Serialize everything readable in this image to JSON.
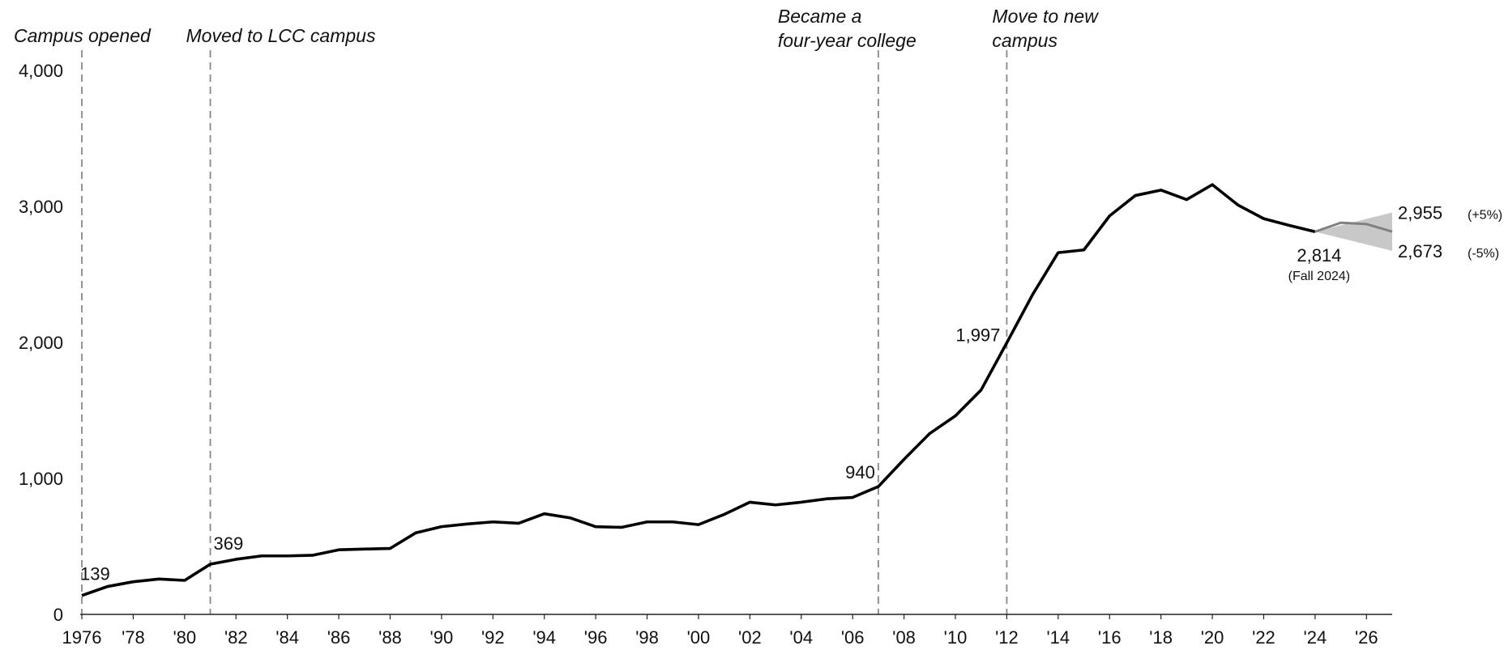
{
  "chart_data": {
    "type": "line",
    "colors": {
      "history": "#000000",
      "projection": "#808080",
      "band": "#c8c8c8",
      "event_line": "#888888"
    },
    "x_ticks": [
      {
        "x": 1976,
        "label": "1976"
      },
      {
        "x": 1978,
        "label": "'78"
      },
      {
        "x": 1980,
        "label": "'80"
      },
      {
        "x": 1982,
        "label": "'82"
      },
      {
        "x": 1984,
        "label": "'84"
      },
      {
        "x": 1986,
        "label": "'86"
      },
      {
        "x": 1988,
        "label": "'88"
      },
      {
        "x": 1990,
        "label": "'90"
      },
      {
        "x": 1992,
        "label": "'92"
      },
      {
        "x": 1994,
        "label": "'94"
      },
      {
        "x": 1996,
        "label": "'96"
      },
      {
        "x": 1998,
        "label": "'98"
      },
      {
        "x": 2000,
        "label": "'00"
      },
      {
        "x": 2002,
        "label": "'02"
      },
      {
        "x": 2004,
        "label": "'04"
      },
      {
        "x": 2006,
        "label": "'06"
      },
      {
        "x": 2008,
        "label": "'08"
      },
      {
        "x": 2010,
        "label": "'10"
      },
      {
        "x": 2012,
        "label": "'12"
      },
      {
        "x": 2014,
        "label": "'14"
      },
      {
        "x": 2016,
        "label": "'16"
      },
      {
        "x": 2018,
        "label": "'18"
      },
      {
        "x": 2020,
        "label": "'20"
      },
      {
        "x": 2022,
        "label": "'22"
      },
      {
        "x": 2024,
        "label": "'24"
      },
      {
        "x": 2026,
        "label": "'26"
      }
    ],
    "y_ticks": [
      {
        "y": 0,
        "label": "0"
      },
      {
        "y": 1000,
        "label": "1,000"
      },
      {
        "y": 2000,
        "label": "2,000"
      },
      {
        "y": 3000,
        "label": "3,000"
      },
      {
        "y": 4000,
        "label": "4,000"
      }
    ],
    "xlim": [
      1976,
      2027
    ],
    "ylim": [
      0,
      4000
    ],
    "grid": false,
    "series": [
      {
        "x": [
          1976,
          1977,
          1978,
          1979,
          1980,
          1981,
          1982,
          1983,
          1984,
          1985,
          1986,
          1987,
          1988,
          1989,
          1990,
          1991,
          1992,
          1993,
          1994,
          1995,
          1996,
          1997,
          1998,
          1999,
          2000,
          2001,
          2002,
          2003,
          2004,
          2005,
          2006,
          2007,
          2008,
          2009,
          2010,
          2011,
          2012,
          2013,
          2014,
          2015,
          2016,
          2017,
          2018,
          2019,
          2020,
          2021,
          2022,
          2023,
          2024
        ],
        "y": [
          139,
          205,
          240,
          260,
          250,
          369,
          405,
          430,
          430,
          435,
          475,
          480,
          485,
          600,
          645,
          665,
          680,
          670,
          740,
          710,
          645,
          640,
          680,
          680,
          660,
          735,
          825,
          805,
          825,
          850,
          860,
          940,
          1140,
          1330,
          1460,
          1650,
          1997,
          2350,
          2660,
          2680,
          2930,
          3080,
          3120,
          3050,
          3160,
          3010,
          2910,
          2860,
          2814
        ]
      },
      {
        "x": [
          2024,
          2025,
          2026,
          2027
        ],
        "y": [
          2814,
          2880,
          2870,
          2814
        ]
      }
    ],
    "projection_band": {
      "x": [
        2024,
        2027
      ],
      "upper": [
        2814,
        2955
      ],
      "lower": [
        2814,
        2673
      ]
    },
    "events": [
      {
        "x": 1976,
        "label_lines": [
          "Campus opened"
        ]
      },
      {
        "x": 1981,
        "label_lines": [
          "Moved to LCC campus"
        ]
      },
      {
        "x": 2007,
        "label_lines": [
          "Became a",
          "four-year college"
        ]
      },
      {
        "x": 2012,
        "label_lines": [
          "Move to new",
          "campus"
        ]
      }
    ],
    "annotations": [
      {
        "x": 1976,
        "y": 139,
        "text": "139"
      },
      {
        "x": 1981,
        "y": 369,
        "text": "369"
      },
      {
        "x": 2007,
        "y": 940,
        "text": "940"
      },
      {
        "x": 2012,
        "y": 1997,
        "text": "1,997"
      },
      {
        "x": 2024,
        "y": 2814,
        "text": "2,814",
        "sub": "(Fall 2024)"
      },
      {
        "x": 2027,
        "y": 2955,
        "text": "2,955",
        "sub": "(+5%)"
      },
      {
        "x": 2027,
        "y": 2673,
        "text": "2,673",
        "sub": "(-5%)"
      }
    ]
  }
}
